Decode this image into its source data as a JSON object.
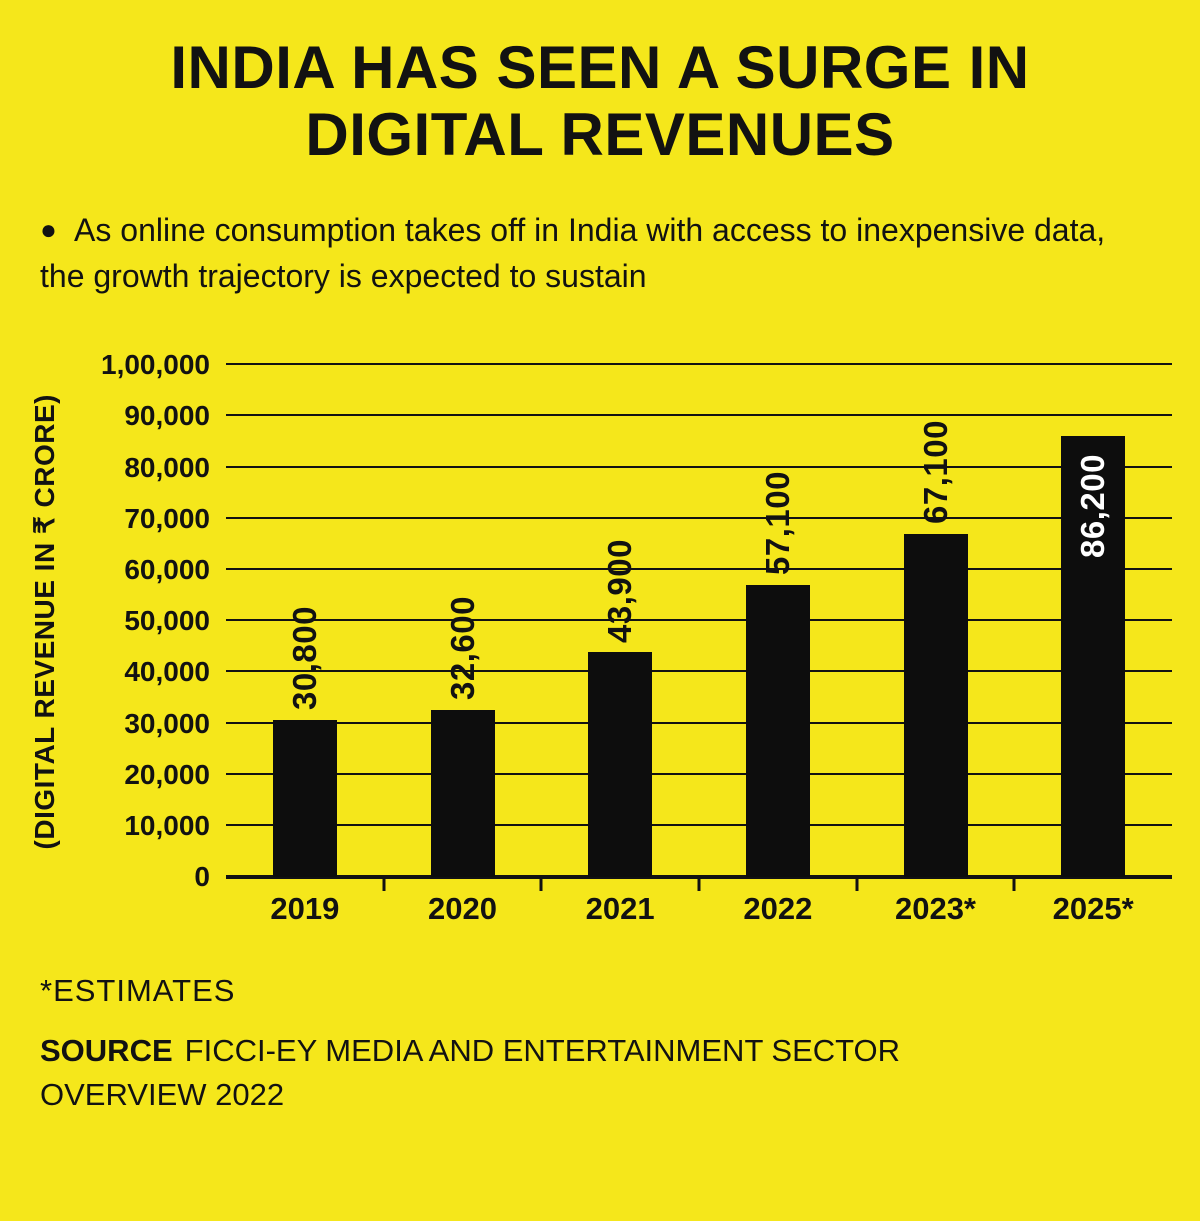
{
  "page": {
    "title_line1": "INDIA HAS SEEN A SURGE IN",
    "title_line2": "DIGITAL REVENUES",
    "bullet": "●",
    "intro": "As online consumption takes off in India with access to inexpensive data, the growth trajectory is expected to sustain",
    "footnote": "*ESTIMATES",
    "source_label": "SOURCE",
    "source_text": "FICCI-EY MEDIA AND ENTERTAINMENT SECTOR OVERVIEW 2022"
  },
  "chart_data": {
    "type": "bar",
    "title": "INDIA HAS SEEN A SURGE IN DIGITAL REVENUES",
    "categories": [
      "2019",
      "2020",
      "2021",
      "2022",
      "2023*",
      "2025*"
    ],
    "values": [
      30800,
      32600,
      43900,
      57100,
      67100,
      86200
    ],
    "value_labels": [
      "30,800",
      "32,600",
      "43,900",
      "57,100",
      "67,100",
      "86,200"
    ],
    "xlabel": "",
    "ylabel": "(DIGITAL REVENUE IN ₹ CRORE)",
    "ylim": [
      0,
      100000
    ],
    "ytick_step": 10000,
    "ytick_labels": [
      "0",
      "10,000",
      "20,000",
      "30,000",
      "40,000",
      "50,000",
      "60,000",
      "70,000",
      "80,000",
      "90,000",
      "1,00,000"
    ],
    "grid": true,
    "legend": "none",
    "bar_color": "#0d0d0d",
    "background_color": "#f5e71b",
    "inside_label_indexes": [
      5
    ]
  }
}
